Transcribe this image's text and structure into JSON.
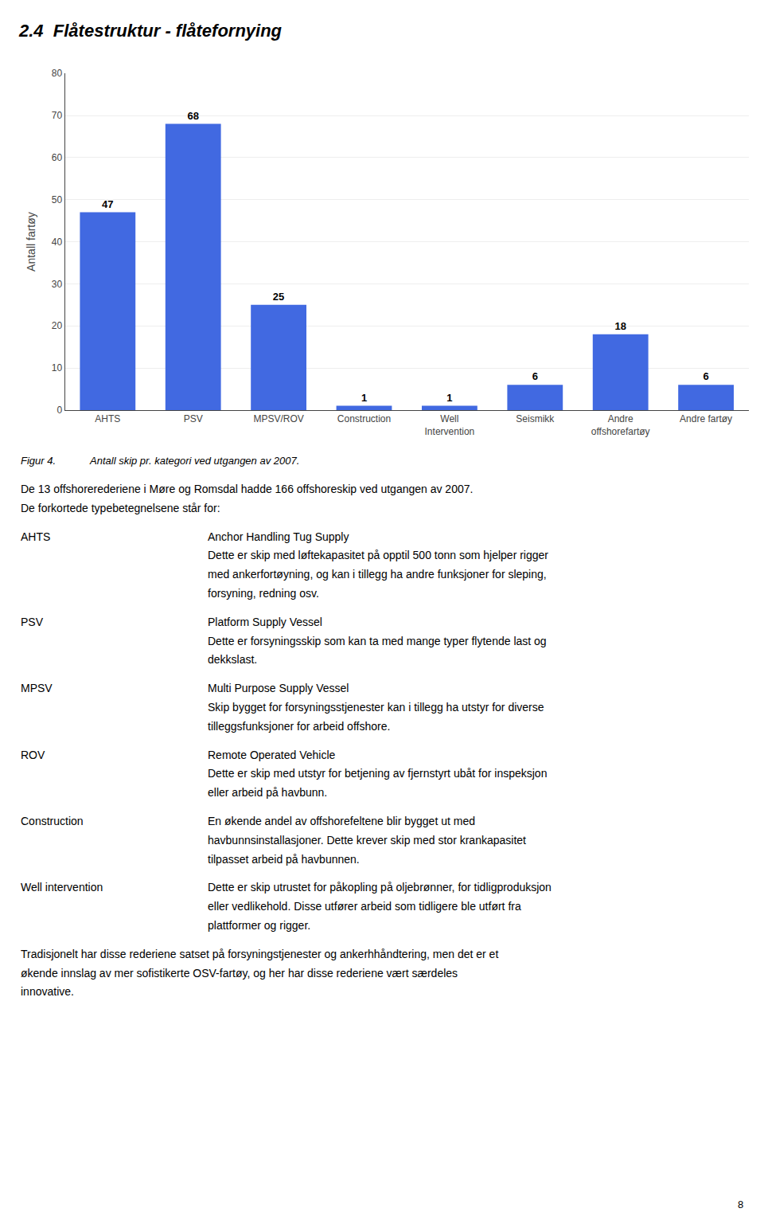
{
  "chart_data": {
    "type": "bar",
    "title": "2.4  Flåtestruktur - flåtefornying",
    "categories": [
      "AHTS",
      "PSV",
      "MPSV/ROV",
      "Construction",
      "Well\nIntervention",
      "Seismikk",
      "Andre\noffshorefartøy",
      "Andre fartøy"
    ],
    "values": [
      47,
      68,
      25,
      1,
      1,
      6,
      18,
      6
    ],
    "color": "#4169E1",
    "ylabel": "Antall fartøy",
    "ylim": [
      0,
      80
    ],
    "yticks": [
      0,
      10,
      20,
      30,
      40,
      50,
      60,
      70,
      80
    ],
    "grid": true,
    "data_labels": true,
    "caption": [
      "Figur 4.",
      "Antall skip pr. kategori ved utgangen av 2007."
    ],
    "annotations": [
      {
        "lines": [
          "De 13 offshorerederiene i Møre og Romsdal hadde 166 offshoreskip ved utgangen av 2007.",
          "De forkortede typebetegnelsene står for:"
        ]
      },
      {
        "term": "AHTS",
        "lines": [
          "Anchor Handling Tug Supply",
          "Dette er skip med løftekapasitet på opptil 500 tonn som hjelper rigger",
          "med ankerfortøyning, og kan i tillegg ha andre funksjoner for sleping,",
          "forsyning, redning osv."
        ]
      },
      {
        "term": "PSV",
        "lines": [
          "Platform Supply Vessel",
          "Dette er forsyningsskip som kan ta med mange typer flytende last og",
          "dekkslast."
        ]
      },
      {
        "term": "MPSV",
        "lines": [
          "Multi Purpose Supply Vessel",
          "Skip bygget for forsyningsstjenester kan i tillegg ha utstyr for diverse",
          "tilleggsfunksjoner for arbeid offshore."
        ]
      },
      {
        "term": "ROV",
        "lines": [
          "Remote Operated Vehicle",
          "Dette er skip med utstyr for betjening av fjernstyrt ubåt for inspeksjon",
          "eller arbeid på havbunn."
        ]
      },
      {
        "term": "Construction",
        "lines": [
          "En økende andel av offshorefeltene blir bygget ut med",
          "havbunnsinstallasjoner. Dette krever skip med stor krankapasitet",
          "tilpasset arbeid på havbunnen."
        ]
      },
      {
        "term": "Well intervention",
        "lines": [
          "Dette er skip utrustet for påkopling på oljebrønner, for tidligproduksjon",
          "eller vedlikehold. Disse utfører arbeid som tidligere ble utført fra",
          "plattformer og rigger."
        ]
      },
      {
        "lines": [
          "Tradisjonelt har disse rederiene satset på forsyningstjenester og ankerhhåndtering, men det er et",
          "økende innslag av mer sofistikerte OSV-fartøy, og her har disse rederiene vært særdeles",
          "innovative."
        ]
      }
    ],
    "page_number": "8"
  }
}
